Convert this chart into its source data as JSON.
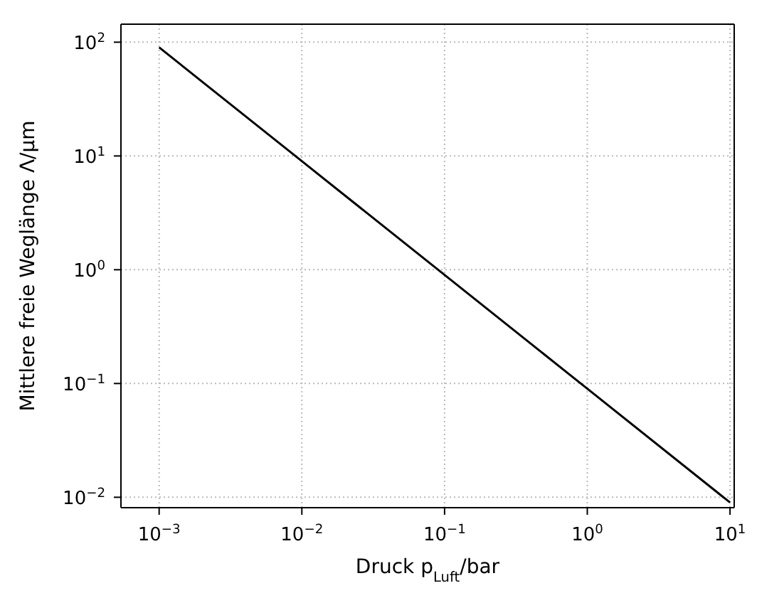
{
  "chart_data": {
    "type": "line",
    "xlabel": "Druck p$_{Luft}$/bar",
    "ylabel": "Mittlere freie Weglänge Λ/μm",
    "x": [
      0.001,
      0.01,
      0.1,
      1,
      10
    ],
    "series": [
      {
        "color": "#000000",
        "values": [
          90,
          9,
          0.9,
          0.09,
          0.009
        ]
      }
    ],
    "log": "xy",
    "grid": true,
    "marker": "none",
    "line_style": "solid",
    "xlim": [
      0.00054,
      10.7
    ],
    "ylim": [
      0.0081,
      144
    ],
    "xticks": [
      {
        "value": 0.001,
        "label": "10$^{−3}$"
      },
      {
        "value": 0.01,
        "label": "10$^{−2}$"
      },
      {
        "value": 0.1,
        "label": "10$^{−1}$"
      },
      {
        "value": 1,
        "label": "10$^{0}$"
      },
      {
        "value": 10,
        "label": "10$^{1}$"
      }
    ],
    "yticks": [
      {
        "value": 0.01,
        "label": "10$^{−2}$"
      },
      {
        "value": 0.1,
        "label": "10$^{−1}$"
      },
      {
        "value": 1,
        "label": "10$^{0}$"
      },
      {
        "value": 10,
        "label": "10$^{1}$"
      },
      {
        "value": 100,
        "label": "10$^{2}$"
      }
    ]
  }
}
